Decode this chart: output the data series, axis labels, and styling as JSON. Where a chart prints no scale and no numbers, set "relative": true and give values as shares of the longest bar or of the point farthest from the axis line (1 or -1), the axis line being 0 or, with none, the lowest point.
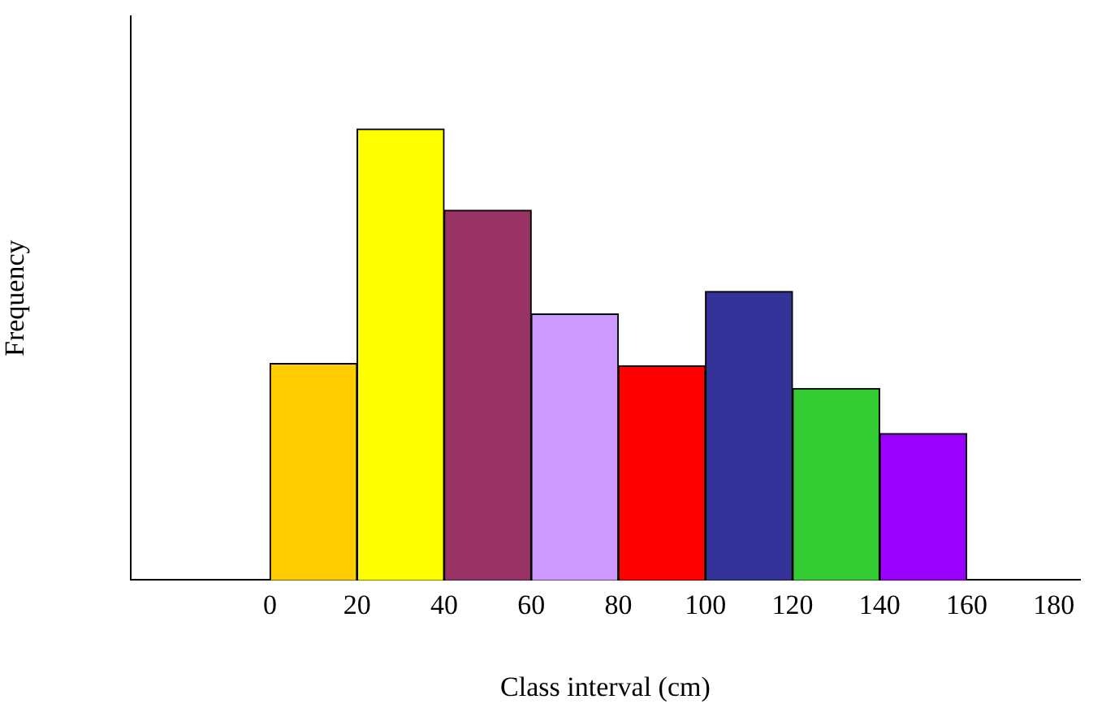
{
  "chart_data": {
    "type": "bar",
    "xlabel": "Class interval (cm)",
    "ylabel": "Frequency",
    "x": [
      10,
      30,
      50,
      70,
      90,
      110,
      130,
      150
    ],
    "values": [
      0.48,
      1,
      0.82,
      0.59,
      0.475,
      0.64,
      0.425,
      0.325
    ],
    "colors": [
      "#ffcc00",
      "#ffff00",
      "#993366",
      "#cc99ff",
      "#ff0000",
      "#333399",
      "#33cc33",
      "#9900ff"
    ],
    "relative": true,
    "xlim": [
      -32,
      186
    ],
    "xticks": [
      0,
      20,
      40,
      60,
      80,
      100,
      120,
      140,
      160,
      180
    ],
    "tick_labels": "x",
    "grid": false,
    "legend": false
  }
}
